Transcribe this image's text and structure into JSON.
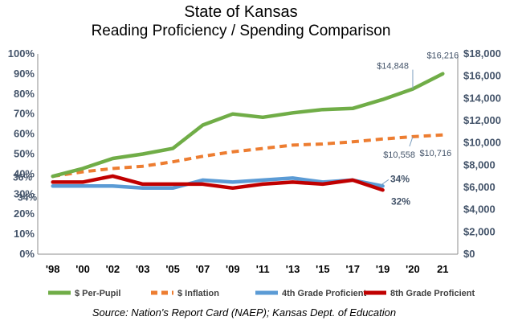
{
  "chart_data": {
    "type": "line",
    "title": "State of Kansas",
    "subtitle": "Reading Proficiency / Spending Comparison",
    "source": "Source: Nation's Report Card (NAEP); Kansas Dept. of Education",
    "categories": [
      "'98",
      "'00",
      "'02",
      "'03",
      "'05",
      "'07",
      "'09",
      "'11",
      "'13",
      "'15",
      "'17",
      "'19",
      "'20",
      "21"
    ],
    "y_left": {
      "min": 0,
      "max": 100,
      "ticks": [
        0,
        10,
        20,
        30,
        40,
        50,
        60,
        70,
        80,
        90,
        100
      ],
      "tick_labels": [
        "0%",
        "10%",
        "20%",
        "30%",
        "40%",
        "50%",
        "60%",
        "70%",
        "80%",
        "90%",
        "100%"
      ]
    },
    "y_right": {
      "min": 0,
      "max": 18000,
      "ticks": [
        0,
        2000,
        4000,
        6000,
        8000,
        10000,
        12000,
        14000,
        16000,
        18000
      ],
      "tick_labels": [
        "$0",
        "$2,000",
        "$4,000",
        "$6,000",
        "$8,000",
        "$10,000",
        "$12,000",
        "$14,000",
        "$16,000",
        "$18,000"
      ]
    },
    "series": [
      {
        "name": "$ Per-Pupil",
        "axis": "right",
        "color": "#70AD47",
        "style": "solid",
        "values": [
          7000,
          7700,
          8600,
          9000,
          9500,
          11600,
          12600,
          12300,
          12700,
          13000,
          13100,
          13900,
          14848,
          16216
        ]
      },
      {
        "name": "$ Inflation",
        "axis": "right",
        "color": "#ED7D31",
        "style": "dashed",
        "values": [
          7000,
          7400,
          7700,
          7900,
          8300,
          8800,
          9200,
          9500,
          9800,
          9900,
          10100,
          10350,
          10558,
          10716
        ]
      },
      {
        "name": "4th Grade Proficient",
        "axis": "left",
        "color": "#5B9BD5",
        "style": "solid",
        "values": [
          34,
          34,
          34,
          33,
          33,
          37,
          36,
          37,
          38,
          36,
          37,
          34,
          null,
          null
        ]
      },
      {
        "name": "8th Grade Proficient",
        "axis": "left",
        "color": "#C00000",
        "style": "solid",
        "values": [
          36,
          36,
          39,
          35,
          35,
          35,
          33,
          35,
          36,
          35,
          37,
          32,
          null,
          null
        ]
      }
    ],
    "annotations": {
      "left_4th": "34%",
      "left_8th": "36%",
      "right_4th": "34%",
      "right_8th": "32%",
      "perpupil_20": "$14,848",
      "perpupil_21": "$16,216",
      "inflation_20": "$10,558",
      "inflation_21": "$10,716"
    },
    "grid": false,
    "legend_position": "bottom"
  }
}
